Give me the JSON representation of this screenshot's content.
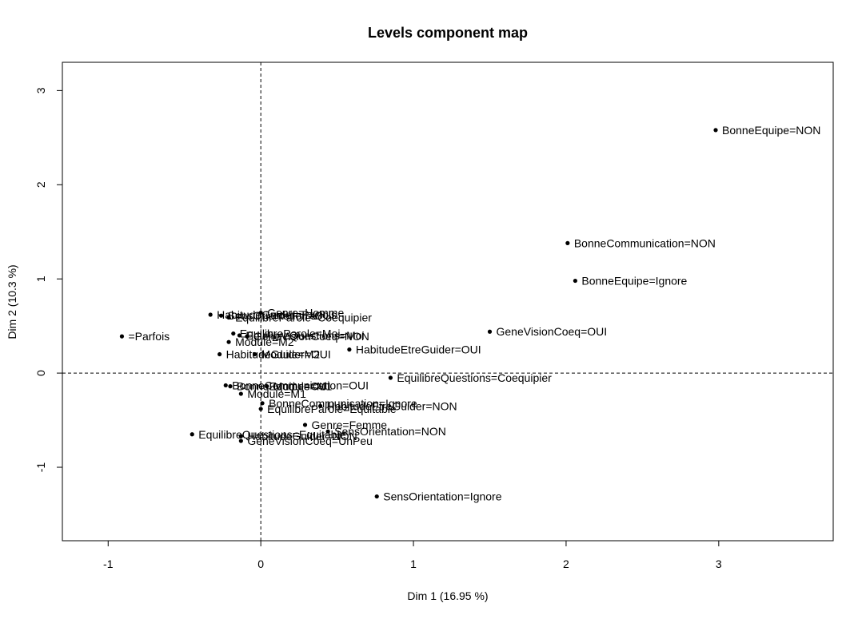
{
  "chart_data": {
    "type": "scatter",
    "title": "Levels component map",
    "xlabel": "Dim 1 (16.95 %)",
    "ylabel": "Dim 2 (10.3 %)",
    "xlim": [
      -1.3,
      3.75
    ],
    "ylim": [
      -1.78,
      3.3
    ],
    "xticks": [
      -1,
      0,
      1,
      2,
      3
    ],
    "yticks": [
      -1,
      0,
      1,
      2,
      3
    ],
    "reference_lines": {
      "x": 0,
      "y": 0,
      "style": "dashed"
    },
    "grid": false,
    "legend": "none",
    "marker_color": "#000000",
    "points": [
      {
        "x": 2.98,
        "y": 2.58,
        "label": "BonneEquipe=NON"
      },
      {
        "x": 2.01,
        "y": 1.38,
        "label": "BonneCommunication=NON"
      },
      {
        "x": 2.06,
        "y": 0.98,
        "label": "BonneEquipe=Ignore"
      },
      {
        "x": 1.5,
        "y": 0.44,
        "label": "GeneVisionCoeq=OUI"
      },
      {
        "x": 0.58,
        "y": 0.25,
        "label": "HabitudeEtreGuider=OUI"
      },
      {
        "x": 0.85,
        "y": -0.05,
        "label": "EquilibreQuestions=Coequipier"
      },
      {
        "x": 0.39,
        "y": -0.35,
        "label": "HabitudeEtreGuider=NON"
      },
      {
        "x": 0.76,
        "y": -1.31,
        "label": "SensOrientation=Ignore"
      },
      {
        "x": -0.91,
        "y": 0.39,
        "label": "=Parfois"
      },
      {
        "x": -0.27,
        "y": 0.2,
        "label": "HabitudeGuider=OUI"
      },
      {
        "x": -0.33,
        "y": 0.62,
        "label": "HabitudeGuider=Parfois"
      },
      {
        "x": -0.26,
        "y": 0.61,
        "label": "SensOrientation=OUI"
      },
      {
        "x": 0.0,
        "y": 0.64,
        "label": "Genre=Homme"
      },
      {
        "x": -0.21,
        "y": 0.59,
        "label": "EquilibreParole=Coequipier"
      },
      {
        "x": -0.18,
        "y": 0.42,
        "label": "EquilibreParole=Moi"
      },
      {
        "x": -0.14,
        "y": 0.4,
        "label": "EquilibreQuestions=Moi"
      },
      {
        "x": -0.09,
        "y": 0.39,
        "label": "GeneVisionCoeq=NON"
      },
      {
        "x": -0.21,
        "y": 0.33,
        "label": "Module=M2"
      },
      {
        "x": -0.04,
        "y": 0.2,
        "label": "Module=M2"
      },
      {
        "x": -0.23,
        "y": -0.13,
        "label": "BonneCommunication=OUI"
      },
      {
        "x": -0.2,
        "y": -0.14,
        "label": "BonneEquipe=OUI"
      },
      {
        "x": 0.04,
        "y": -0.14,
        "label": "Module=M1"
      },
      {
        "x": -0.13,
        "y": -0.22,
        "label": "Module=M1"
      },
      {
        "x": 0.01,
        "y": -0.32,
        "label": "BonneCommunication=Ignore"
      },
      {
        "x": 0.0,
        "y": -0.38,
        "label": "EquilibreParole=Equitable"
      },
      {
        "x": 0.29,
        "y": -0.55,
        "label": "Genre=Femme"
      },
      {
        "x": 0.44,
        "y": -0.62,
        "label": "SensOrientation=NON"
      },
      {
        "x": -0.45,
        "y": -0.65,
        "label": "EquilibreQuestions=Equitable"
      },
      {
        "x": -0.13,
        "y": -0.67,
        "label": "HabitudeGuider=NON"
      },
      {
        "x": -0.13,
        "y": -0.72,
        "label": "GeneVisionCoeq=UnPeu"
      }
    ]
  }
}
